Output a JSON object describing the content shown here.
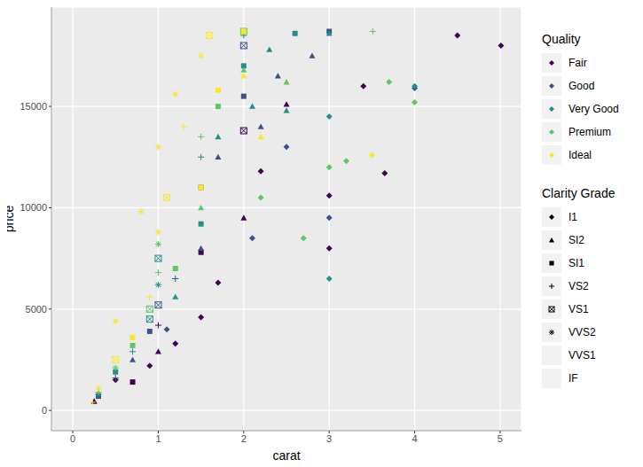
{
  "chart_data": {
    "type": "scatter",
    "x_label": "carat",
    "y_label": "price",
    "xlim": [
      -0.25,
      5.25
    ],
    "ylim": [
      -1000,
      19900
    ],
    "xticks": [
      0,
      1,
      2,
      3,
      4,
      5
    ],
    "yticks": [
      0,
      5000,
      10000,
      15000
    ],
    "grid": true,
    "legend": "right",
    "quality_title": "Quality",
    "clarity_title": "Clarity Grade",
    "clarity_grades": [
      {
        "name": "I1",
        "marker": "diamond"
      },
      {
        "name": "SI2",
        "marker": "triangle"
      },
      {
        "name": "SI1",
        "marker": "square"
      },
      {
        "name": "VS2",
        "marker": "plus"
      },
      {
        "name": "VS1",
        "marker": "boxed_x"
      },
      {
        "name": "VVS2",
        "marker": "asterisk"
      },
      {
        "name": "VVS1",
        "marker": "none"
      },
      {
        "name": "IF",
        "marker": "none"
      }
    ],
    "series": [
      {
        "name": "Fair",
        "color": "#440154",
        "x": [
          0.25,
          0.5,
          0.7,
          0.9,
          1.0,
          1.0,
          1.2,
          1.5,
          1.5,
          1.7,
          2.0,
          2.0,
          2.2,
          2.5,
          3.0,
          3.0,
          3.4,
          3.65,
          4.5,
          5.01
        ],
        "y": [
          450,
          1500,
          1400,
          2200,
          2900,
          4200,
          3300,
          4600,
          7800,
          6300,
          9500,
          13800,
          11800,
          15100,
          10600,
          8000,
          16000,
          11700,
          18500,
          18000
        ],
        "clarity": [
          "SI2",
          "I1",
          "SI1",
          "I1",
          "SI2",
          "VS2",
          "I1",
          "I1",
          "SI1",
          "I1",
          "SI2",
          "VS1",
          "I1",
          "SI2",
          "I1",
          "I1",
          "I1",
          "I1",
          "I1",
          "I1"
        ]
      },
      {
        "name": "Good",
        "color": "#3B528B",
        "x": [
          0.3,
          0.5,
          0.7,
          0.9,
          1.0,
          1.1,
          1.2,
          1.5,
          1.5,
          1.7,
          2.0,
          2.0,
          2.2,
          2.4,
          2.5,
          2.8,
          3.0,
          3.0,
          4.0,
          2.1
        ],
        "y": [
          700,
          1600,
          2500,
          3900,
          5200,
          4000,
          6500,
          8000,
          11000,
          12500,
          15500,
          18000,
          14000,
          16500,
          13000,
          17500,
          18700,
          9500,
          15900,
          8500
        ],
        "clarity": [
          "SI1",
          "VS2",
          "SI2",
          "SI1",
          "VS1",
          "I1",
          "VS2",
          "SI2",
          "SI1",
          "SI2",
          "SI1",
          "VS1",
          "SI2",
          "SI2",
          "I1",
          "SI2",
          "SI1",
          "I1",
          "I1",
          "I1"
        ]
      },
      {
        "name": "Very Good",
        "color": "#21908C",
        "x": [
          0.3,
          0.5,
          0.7,
          0.9,
          1.0,
          1.0,
          1.2,
          1.5,
          1.5,
          1.7,
          2.0,
          2.0,
          2.1,
          2.3,
          2.5,
          2.6,
          3.0,
          3.0,
          3.0,
          4.0
        ],
        "y": [
          800,
          1900,
          2900,
          4500,
          6200,
          7500,
          5600,
          9200,
          12500,
          13500,
          17000,
          18500,
          15000,
          17800,
          14800,
          18600,
          18600,
          14500,
          6500,
          16000
        ],
        "clarity": [
          "VVS2",
          "SI1",
          "VS2",
          "VS1",
          "VVS2",
          "VS1",
          "SI2",
          "SI1",
          "VS2",
          "SI2",
          "SI1",
          "VS2",
          "SI2",
          "SI2",
          "SI2",
          "SI1",
          "SI2",
          "I1",
          "I1",
          "I1"
        ]
      },
      {
        "name": "Premium",
        "color": "#5DC863",
        "x": [
          0.3,
          0.5,
          0.7,
          0.9,
          1.0,
          1.0,
          1.2,
          1.5,
          1.5,
          1.7,
          2.0,
          2.0,
          2.2,
          2.5,
          2.7,
          3.0,
          3.2,
          3.7,
          4.0,
          3.51
        ],
        "y": [
          900,
          2100,
          3200,
          5000,
          6800,
          8200,
          7000,
          10000,
          13500,
          15000,
          16800,
          18700,
          10500,
          16200,
          8500,
          12000,
          12300,
          16200,
          15200,
          18700
        ],
        "clarity": [
          "VS2",
          "VVS2",
          "SI1",
          "VS1",
          "VS2",
          "VVS2",
          "SI1",
          "SI2",
          "VS2",
          "SI1",
          "SI2",
          "VS1",
          "I1",
          "SI2",
          "I1",
          "I1",
          "I1",
          "I1",
          "I1",
          "VS2"
        ]
      },
      {
        "name": "Ideal",
        "color": "#FDE725",
        "x": [
          0.23,
          0.3,
          0.5,
          0.5,
          0.7,
          0.8,
          0.9,
          1.0,
          1.0,
          1.1,
          1.2,
          1.3,
          1.5,
          1.5,
          1.6,
          1.7,
          2.0,
          2.0,
          2.2,
          3.5
        ],
        "y": [
          400,
          1100,
          2500,
          4400,
          3600,
          9800,
          5600,
          8800,
          13000,
          10500,
          15600,
          14000,
          11000,
          17500,
          18500,
          15800,
          16500,
          18700,
          13500,
          12600
        ],
        "clarity": [
          "VS2",
          "VVS2",
          "VS1",
          "VVS2",
          "SI1",
          "VVS2",
          "VS2",
          "VVS2",
          "VVS2",
          "VS1",
          "VVS2",
          "VS2",
          "SI1",
          "VVS2",
          "VS1",
          "SI1",
          "SI2",
          "SI1",
          "SI2",
          "I1"
        ]
      }
    ]
  }
}
